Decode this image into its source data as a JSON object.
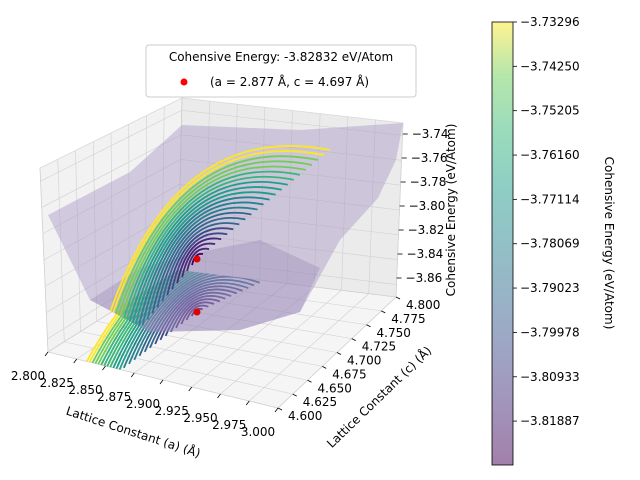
{
  "chart_data": {
    "type": "surface3d",
    "title": "",
    "legend": {
      "title": "Cohensive Energy: -3.82832 eV/Atom",
      "entry": "(a = 2.877 Å, c = 4.697 Å)",
      "marker_color": "#ff0000",
      "position": "top-center"
    },
    "xlabel": "Lattice Constant (a) (Å)",
    "ylabel": "Lattice Constant (c) (Å)",
    "zlabel": "Cohensive Energy (eV/Atom)",
    "xlim": [
      2.8,
      3.0
    ],
    "ylim": [
      4.6,
      4.8
    ],
    "zlim": [
      -3.87,
      -3.735
    ],
    "x_ticks": [
      "2.800",
      "2.825",
      "2.850",
      "2.875",
      "2.900",
      "2.925",
      "2.950",
      "2.975",
      "3.000"
    ],
    "y_ticks": [
      "4.600",
      "4.625",
      "4.650",
      "4.675",
      "4.700",
      "4.725",
      "4.750",
      "4.775",
      "4.800"
    ],
    "z_ticks": [
      "−3.86",
      "−3.84",
      "−3.82",
      "−3.80",
      "−3.78",
      "−3.76",
      "−3.74"
    ],
    "minimum": {
      "a": 2.877,
      "c": 4.697,
      "energy": -3.82832
    },
    "corner_values": {
      "a2.8_c4.6": -3.79,
      "a3.0_c4.6": -3.8,
      "a2.8_c4.8": -3.79,
      "a3.0_c4.8": -3.733
    },
    "colorbar": {
      "label": "Cohensive Energy (eV/Atom)",
      "ticks": [
        "−3.73296",
        "−3.74250",
        "−3.75205",
        "−3.76160",
        "−3.77114",
        "−3.78069",
        "−3.79023",
        "−3.79978",
        "−3.80933",
        "−3.81887"
      ],
      "range": [
        -3.82832,
        -3.73296
      ],
      "colormap": "viridis"
    },
    "grid": true,
    "surface_color": "#c6b4d8",
    "contour_projection": "bottom"
  }
}
